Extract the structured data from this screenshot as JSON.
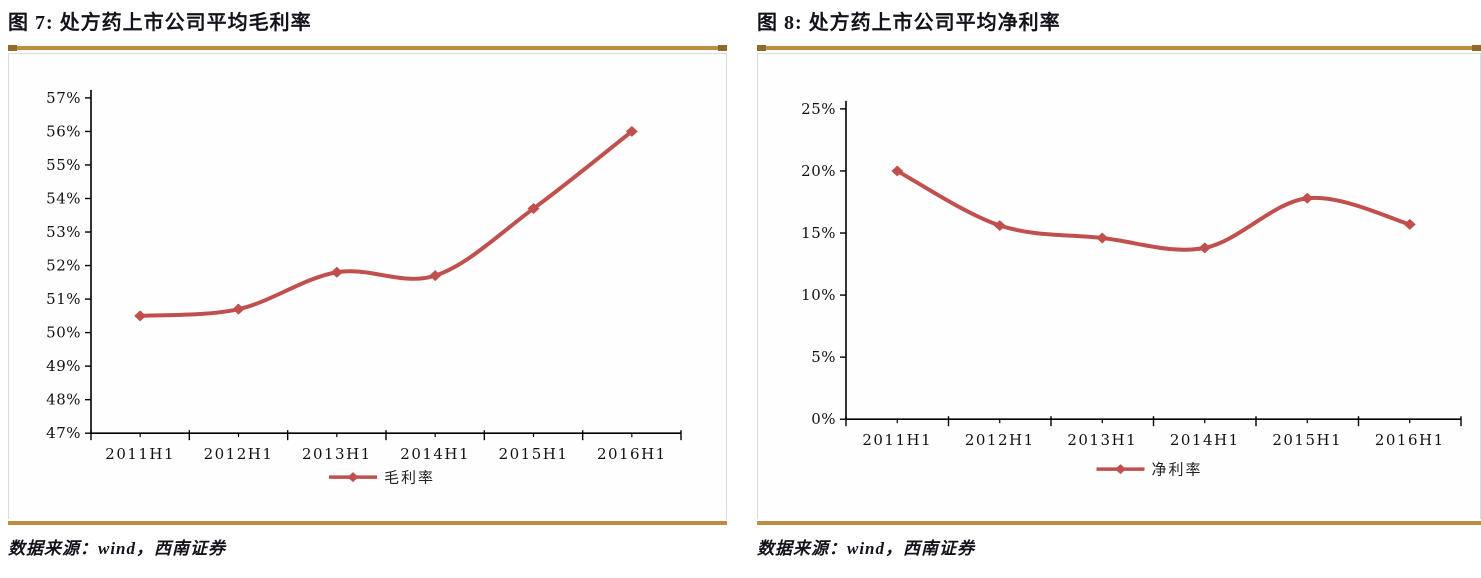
{
  "colors": {
    "accent_gold": "#BD8E3E",
    "gold_cap": "#8F6B2B",
    "series_red": "#C0504D",
    "text_dark": "#13131d",
    "axis_black": "#000000",
    "frame_gray": "#dcdcdc"
  },
  "panels": [
    {
      "title": "图 7: 处方药上市公司平均毛利率",
      "source": "数据来源：wind，西南证券"
    },
    {
      "title": "图 8: 处方药上市公司平均净利率",
      "source": "数据来源：wind，西南证券"
    }
  ],
  "chart_data": [
    {
      "type": "line",
      "title": "处方药上市公司平均毛利率",
      "categories": [
        "2011H1",
        "2012H1",
        "2013H1",
        "2014H1",
        "2015H1",
        "2016H1"
      ],
      "series": [
        {
          "name": "毛利率",
          "values": [
            50.5,
            50.7,
            51.8,
            51.7,
            53.7,
            56.0
          ]
        }
      ],
      "xlabel": "",
      "ylabel": "",
      "ylim": [
        47,
        57
      ],
      "ytick_step": 1,
      "ytick_labels": [
        "57%",
        "56%",
        "55%",
        "54%",
        "53%",
        "52%",
        "51%",
        "50%",
        "49%",
        "48%",
        "47%"
      ],
      "legend": {
        "label": "毛利率",
        "position": "bottom-center"
      },
      "grid": false,
      "smooth": true,
      "marker": "diamond",
      "line_color": "#C0504D"
    },
    {
      "type": "line",
      "title": "处方药上市公司平均净利率",
      "categories": [
        "2011H1",
        "2012H1",
        "2013H1",
        "2014H1",
        "2015H1",
        "2016H1"
      ],
      "series": [
        {
          "name": "净利率",
          "values": [
            20.0,
            15.6,
            14.6,
            13.8,
            17.8,
            15.7
          ]
        }
      ],
      "xlabel": "",
      "ylabel": "",
      "ylim": [
        0,
        25
      ],
      "ytick_step": 5,
      "ytick_labels": [
        "25%",
        "20%",
        "15%",
        "10%",
        "5%",
        "0%"
      ],
      "legend": {
        "label": "净利率",
        "position": "bottom-center"
      },
      "grid": false,
      "smooth": true,
      "marker": "diamond",
      "line_color": "#C0504D"
    }
  ]
}
